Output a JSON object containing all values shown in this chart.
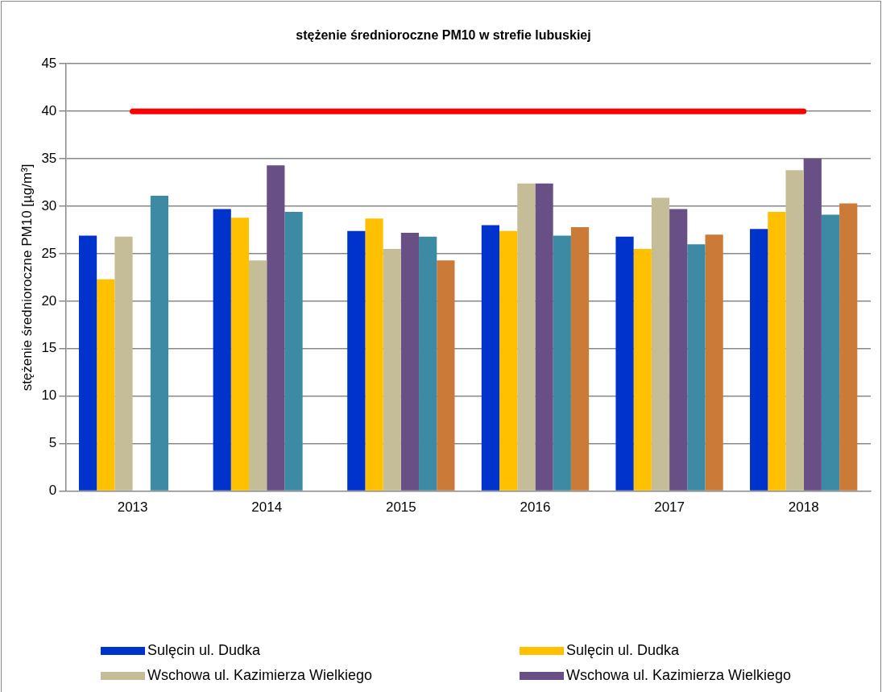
{
  "chart_data": {
    "type": "bar",
    "title": "stężenie średnioroczne PM10 w strefie lubuskiej",
    "ylabel": "stężenie średnioroczne PM10 [µg/m³]",
    "categories": [
      "2013",
      "2014",
      "2015",
      "2016",
      "2017",
      "2018"
    ],
    "series": [
      {
        "name": "Sulęcin ul. Dudka",
        "color": "#0033cc",
        "values": [
          26.9,
          29.7,
          27.4,
          28.0,
          26.8,
          27.6
        ]
      },
      {
        "name": "Sulęcin ul. Dudka",
        "color": "#ffc000",
        "values": [
          22.3,
          28.8,
          28.7,
          27.4,
          25.5,
          29.4
        ]
      },
      {
        "name": "Wschowa ul. Kazimierza Wielkiego",
        "color": "#c4bd97",
        "values": [
          26.8,
          24.3,
          25.5,
          32.4,
          30.9,
          33.8
        ]
      },
      {
        "name": "Wschowa ul. Kazimierza Wielkiego",
        "color": "#684f86",
        "values": [
          null,
          34.3,
          27.2,
          32.4,
          29.7,
          35.0
        ]
      },
      {
        "color": "#3c8aa3",
        "values": [
          31.1,
          29.4,
          26.8,
          26.9,
          26.0,
          29.1
        ]
      },
      {
        "color": "#cc7a38",
        "values": [
          null,
          null,
          24.3,
          27.8,
          27.0,
          30.3
        ]
      },
      {
        "type": "line",
        "color": "#ff0000",
        "values": [
          40,
          40,
          40,
          40,
          40,
          40
        ]
      }
    ],
    "ylim": [
      0,
      45
    ],
    "yticks": [
      0,
      5,
      10,
      15,
      20,
      25,
      30,
      35,
      40,
      45
    ],
    "grid": "y",
    "legend": "bottom",
    "marker": "none",
    "line_style": "solid"
  }
}
